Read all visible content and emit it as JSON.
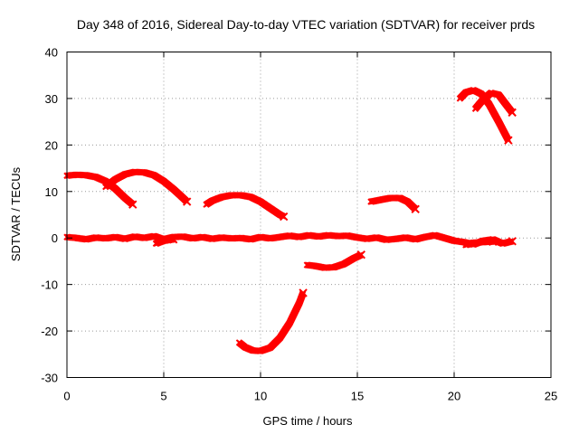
{
  "chart_data": {
    "type": "scatter",
    "title": "Day 348 of 2016, Sidereal Day-to-day VTEC variation (SDTVAR) for receiver prds",
    "xlabel": "GPS time / hours",
    "ylabel": "SDTVAR / TECUs",
    "xlim": [
      0,
      25
    ],
    "ylim": [
      -30,
      40
    ],
    "xticks": [
      "0",
      "5",
      "10",
      "15",
      "20",
      "25"
    ],
    "yticks": [
      "-30",
      "-20",
      "-10",
      "0",
      "10",
      "20",
      "30",
      "40"
    ],
    "grid": true,
    "series": [
      {
        "name": "SDTVAR",
        "color": "#ff0000",
        "marker": "x",
        "segments": [
          [
            [
              0.0,
              13.4
            ],
            [
              0.5,
              13.6
            ],
            [
              1.0,
              13.5
            ],
            [
              1.5,
              13.1
            ],
            [
              2.0,
              12.2
            ],
            [
              2.5,
              10.6
            ],
            [
              3.0,
              8.6
            ],
            [
              3.4,
              7.2
            ]
          ],
          [
            [
              2.0,
              11.0
            ],
            [
              2.5,
              12.6
            ],
            [
              3.0,
              13.7
            ],
            [
              3.5,
              14.2
            ],
            [
              4.0,
              14.1
            ],
            [
              4.5,
              13.5
            ],
            [
              5.0,
              12.2
            ],
            [
              5.5,
              10.5
            ],
            [
              6.0,
              8.6
            ],
            [
              6.2,
              7.8
            ]
          ],
          [
            [
              7.2,
              7.2
            ],
            [
              7.5,
              8.0
            ],
            [
              8.0,
              8.8
            ],
            [
              8.5,
              9.2
            ],
            [
              9.0,
              9.2
            ],
            [
              9.5,
              8.8
            ],
            [
              10.0,
              7.8
            ],
            [
              10.5,
              6.4
            ],
            [
              11.0,
              5.0
            ],
            [
              11.2,
              4.6
            ]
          ],
          [
            [
              8.9,
              -22.5
            ],
            [
              9.2,
              -23.5
            ],
            [
              9.6,
              -24.2
            ],
            [
              10.0,
              -24.3
            ],
            [
              10.5,
              -23.6
            ],
            [
              11.0,
              -21.5
            ],
            [
              11.5,
              -18.3
            ],
            [
              12.0,
              -14.0
            ],
            [
              12.2,
              -11.8
            ]
          ],
          [
            [
              12.4,
              -5.8
            ],
            [
              12.8,
              -6.0
            ],
            [
              13.3,
              -6.4
            ],
            [
              13.8,
              -6.3
            ],
            [
              14.3,
              -5.6
            ],
            [
              14.8,
              -4.4
            ],
            [
              15.2,
              -3.6
            ]
          ],
          [
            [
              15.7,
              7.8
            ],
            [
              16.2,
              8.2
            ],
            [
              16.7,
              8.6
            ],
            [
              17.2,
              8.6
            ],
            [
              17.6,
              7.8
            ],
            [
              18.0,
              6.2
            ]
          ],
          [
            [
              20.3,
              30.0
            ],
            [
              20.6,
              31.3
            ],
            [
              21.0,
              31.8
            ],
            [
              21.4,
              31.0
            ],
            [
              21.8,
              28.8
            ],
            [
              22.3,
              25.0
            ],
            [
              22.8,
              21.0
            ]
          ],
          [
            [
              21.1,
              27.8
            ],
            [
              21.5,
              29.8
            ],
            [
              21.9,
              31.2
            ],
            [
              22.3,
              30.8
            ],
            [
              22.7,
              28.6
            ],
            [
              23.0,
              27.0
            ]
          ],
          [
            [
              0.0,
              0.2
            ],
            [
              0.5,
              0.0
            ],
            [
              1.0,
              -0.3
            ],
            [
              1.5,
              0.1
            ],
            [
              2.0,
              -0.1
            ],
            [
              2.5,
              0.2
            ],
            [
              3.0,
              -0.2
            ],
            [
              3.5,
              0.3
            ],
            [
              4.0,
              0.0
            ],
            [
              4.5,
              0.4
            ],
            [
              5.0,
              -0.3
            ],
            [
              5.5,
              0.2
            ],
            [
              6.0,
              0.3
            ],
            [
              6.5,
              -0.1
            ],
            [
              7.0,
              0.2
            ],
            [
              7.5,
              -0.2
            ],
            [
              8.0,
              0.1
            ],
            [
              8.5,
              -0.1
            ],
            [
              9.0,
              0.0
            ],
            [
              9.5,
              -0.3
            ],
            [
              10.0,
              0.2
            ],
            [
              10.5,
              -0.1
            ],
            [
              11.0,
              0.2
            ],
            [
              11.5,
              0.5
            ],
            [
              12.0,
              0.2
            ],
            [
              12.5,
              0.6
            ],
            [
              13.0,
              0.3
            ],
            [
              13.5,
              0.6
            ],
            [
              14.0,
              0.4
            ],
            [
              14.5,
              0.5
            ],
            [
              15.0,
              0.1
            ],
            [
              15.5,
              -0.2
            ],
            [
              16.0,
              0.1
            ],
            [
              16.5,
              -0.4
            ],
            [
              17.0,
              -0.2
            ],
            [
              17.5,
              0.1
            ],
            [
              18.0,
              -0.3
            ],
            [
              18.5,
              0.2
            ],
            [
              19.0,
              0.6
            ],
            [
              19.5,
              0.0
            ],
            [
              20.0,
              -0.6
            ],
            [
              20.5,
              -0.9
            ],
            [
              21.0,
              -1.4
            ],
            [
              21.5,
              -0.6
            ],
            [
              22.0,
              -0.3
            ],
            [
              22.5,
              -1.2
            ],
            [
              23.0,
              -0.7
            ]
          ],
          [
            [
              4.6,
              -1.2
            ],
            [
              5.0,
              -0.6
            ],
            [
              5.5,
              -0.3
            ]
          ],
          [
            [
              20.6,
              -1.5
            ],
            [
              21.0,
              -1.0
            ],
            [
              21.5,
              -0.9
            ],
            [
              22.0,
              -0.8
            ]
          ]
        ]
      }
    ]
  }
}
